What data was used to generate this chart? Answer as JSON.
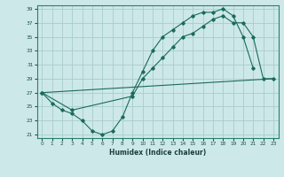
{
  "xlabel": "Humidex (Indice chaleur)",
  "bg_color": "#cde8e8",
  "grid_color": "#a8cccc",
  "line_color": "#1a6b5a",
  "xlim": [
    -0.5,
    23.5
  ],
  "ylim": [
    20.5,
    39.5
  ],
  "xticks": [
    0,
    1,
    2,
    3,
    4,
    5,
    6,
    7,
    8,
    9,
    10,
    11,
    12,
    13,
    14,
    15,
    16,
    17,
    18,
    19,
    20,
    21,
    22,
    23
  ],
  "yticks": [
    21,
    23,
    25,
    27,
    29,
    31,
    33,
    35,
    37,
    39
  ],
  "line1_x": [
    0,
    1,
    2,
    3,
    4,
    5,
    6,
    7,
    8,
    9,
    10,
    11,
    12,
    13,
    14,
    15,
    16,
    17,
    18,
    19,
    20,
    21
  ],
  "line1_y": [
    27,
    25.5,
    24.5,
    24,
    23,
    21.5,
    21,
    21.5,
    23.5,
    27,
    30,
    33,
    35,
    36,
    37,
    38,
    38.5,
    38.5,
    39,
    38,
    35,
    30.5
  ],
  "line2_x": [
    0,
    23
  ],
  "line2_y": [
    27,
    29
  ],
  "line3_x": [
    0,
    3,
    9,
    10,
    11,
    12,
    13,
    14,
    15,
    16,
    17,
    18,
    19,
    20,
    21,
    22,
    23
  ],
  "line3_y": [
    27,
    24.5,
    26.5,
    29,
    30.5,
    32,
    33.5,
    35,
    35.5,
    36.5,
    37.5,
    38,
    37,
    37,
    35,
    29,
    29
  ]
}
